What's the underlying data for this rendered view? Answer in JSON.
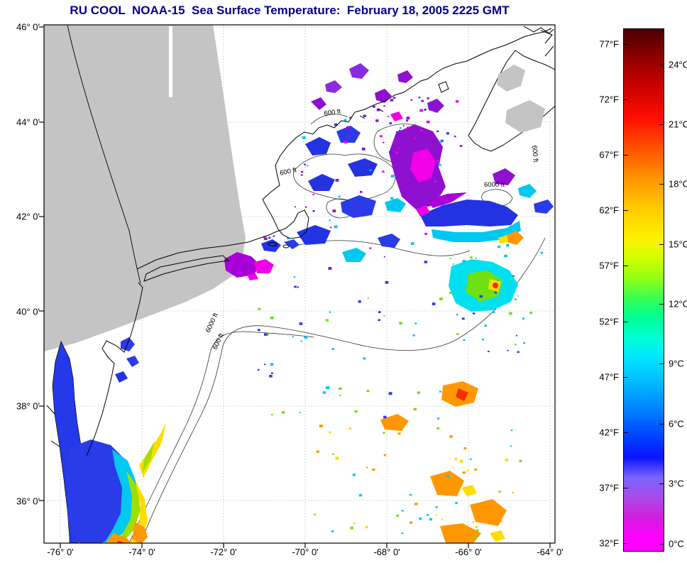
{
  "title": "RU COOL  NOAA-15  Sea Surface Temperature:  February 18, 2005 2225 GMT",
  "map": {
    "x_tick_labels": [
      "-76° 0'",
      "-74° 0'",
      "-72° 0'",
      "-70° 0'",
      "-68° 0'",
      "-66° 0'",
      "-64° 0'"
    ],
    "y_tick_labels": [
      "46° 0'",
      "44° 0'",
      "42° 0'",
      "40° 0'",
      "38° 0'",
      "36° 0'"
    ],
    "contour_labels": [
      "600 ft",
      "600 ft",
      "600 ft",
      "6000 ft",
      "6000 ft",
      "600 ft"
    ],
    "no_coverage_color": "#c4c4c4",
    "ocean_color": "#ffffff",
    "coastline_color": "#000000"
  },
  "colorbar": {
    "fahrenheit_labels": [
      "77°F",
      "72°F",
      "67°F",
      "62°F",
      "57°F",
      "52°F",
      "47°F",
      "42°F",
      "37°F",
      "32°F"
    ],
    "celsius_labels": [
      "24°C",
      "21°C",
      "18°C",
      "15°C",
      "12°C",
      "9°C",
      "6°C",
      "3°C",
      "0°C"
    ],
    "gradient_stops": [
      {
        "p": 0,
        "c": "#4A0000"
      },
      {
        "p": 5.5,
        "c": "#8F0000"
      },
      {
        "p": 11,
        "c": "#CC0000"
      },
      {
        "p": 17,
        "c": "#FF0E00"
      },
      {
        "p": 22.7,
        "c": "#FF5000"
      },
      {
        "p": 28.5,
        "c": "#FF9400"
      },
      {
        "p": 34,
        "c": "#FFC800"
      },
      {
        "p": 40,
        "c": "#FFF000"
      },
      {
        "p": 43.8,
        "c": "#D2FF00"
      },
      {
        "p": 47.6,
        "c": "#96FF14"
      },
      {
        "p": 51.4,
        "c": "#3CFF50"
      },
      {
        "p": 55.3,
        "c": "#00FF96"
      },
      {
        "p": 59.1,
        "c": "#00FFD2"
      },
      {
        "p": 62.9,
        "c": "#00E6FF"
      },
      {
        "p": 66.8,
        "c": "#00C3FF"
      },
      {
        "p": 70.6,
        "c": "#009CFF"
      },
      {
        "p": 74.4,
        "c": "#0070FF"
      },
      {
        "p": 78.2,
        "c": "#0040FF"
      },
      {
        "p": 82.1,
        "c": "#0A14FF"
      },
      {
        "p": 85.9,
        "c": "#7864FF"
      },
      {
        "p": 89.7,
        "c": "#A84BE8"
      },
      {
        "p": 93.6,
        "c": "#D31EDC"
      },
      {
        "p": 97.4,
        "c": "#FF00FF"
      },
      {
        "p": 100,
        "c": "#FF00FF"
      }
    ]
  },
  "sst_palette": {
    "deep_blue": "#2333E2",
    "blue": "#2A3BE8",
    "cyan": "#00C8F0",
    "teal": "#00E0F0",
    "green": "#70E010",
    "yellow_green": "#9FE000",
    "yellow": "#FFDC00",
    "orange": "#FF9800",
    "red": "#F03000",
    "purple": "#9010D0",
    "violet": "#8A2BE2",
    "magenta": "#F000E8",
    "lavender": "#A800D8",
    "bay_blue": "#2639E8"
  },
  "chart_data": {
    "type": "heatmap",
    "title": "RU COOL NOAA-15 Sea Surface Temperature, February 18, 2005 2225 GMT",
    "colorbar_range_c": [
      0,
      26
    ],
    "colorbar_ticks_c": [
      0,
      3,
      6,
      9,
      12,
      15,
      18,
      21,
      24
    ],
    "colorbar_ticks_f": [
      32,
      37,
      42,
      47,
      52,
      57,
      62,
      67,
      72,
      77
    ],
    "lon_range": [
      "-76° 0'",
      "-64° 0'"
    ],
    "lat_range": [
      "36° 0'",
      "46° 0'"
    ]
  }
}
